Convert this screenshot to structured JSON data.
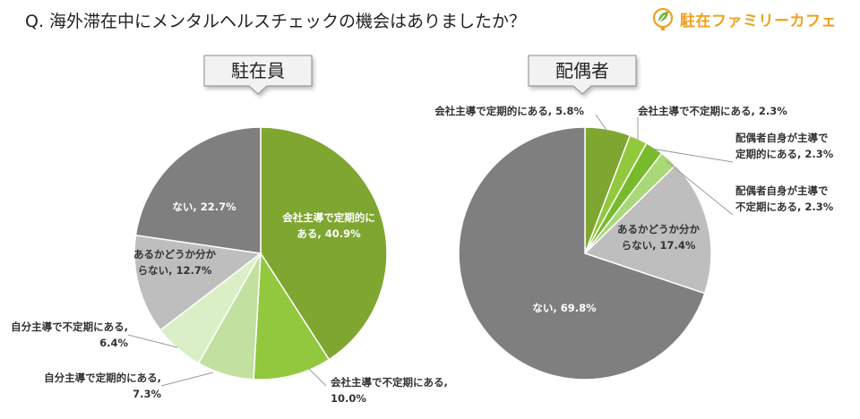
{
  "question": "Q. 海外滞在中にメンタルヘルスチェックの機会はありましたか？",
  "logo": {
    "text": "駐在ファミリーカフェ",
    "icon": "globe-leaf-logo-icon",
    "color": "#f0a020"
  },
  "chart_data": [
    {
      "type": "pie",
      "title": "駐在員",
      "slices": [
        {
          "name": "会社主導で定期的にある",
          "value": 40.9,
          "label": [
            "会社主導で定期的に",
            "ある, 40.9%"
          ],
          "color": "#7ea630"
        },
        {
          "name": "会社主導で不定期にある",
          "value": 10.0,
          "label": [
            "会社主導で不定期にある,",
            "10.0%"
          ],
          "color": "#92c83e"
        },
        {
          "name": "自分主導で定期的にある",
          "value": 7.3,
          "label": [
            "自分主導で定期的にある,",
            "7.3%"
          ],
          "color": "#c2e0a0"
        },
        {
          "name": "自分主導で不定期にある",
          "value": 6.4,
          "label": [
            "自分主導で不定期にある,",
            "6.4%"
          ],
          "color": "#daefc6"
        },
        {
          "name": "あるかどうか分からない",
          "value": 12.7,
          "label": [
            "あるかどうか分か",
            "らない, 12.7%"
          ],
          "color": "#bebebe"
        },
        {
          "name": "ない",
          "value": 22.7,
          "label": [
            "ない, 22.7%"
          ],
          "color": "#7f7f7f"
        }
      ]
    },
    {
      "type": "pie",
      "title": "配偶者",
      "slices": [
        {
          "name": "会社主導で定期的にある",
          "value": 5.8,
          "label": [
            "会社主導で定期的にある, 5.8%"
          ],
          "color": "#7ea630"
        },
        {
          "name": "会社主導で不定期にある",
          "value": 2.3,
          "label": [
            "会社主導で不定期にある, 2.3%"
          ],
          "color": "#92c83e"
        },
        {
          "name": "配偶者自身が主導で定期的にある",
          "value": 2.3,
          "label": [
            "配偶者自身が主導で",
            "定期的にある, 2.3%"
          ],
          "color": "#77bb2c"
        },
        {
          "name": "配偶者自身が主導で不定期にある",
          "value": 2.3,
          "label": [
            "配偶者自身が主導で",
            "不定期にある, 2.3%"
          ],
          "color": "#a9d878"
        },
        {
          "name": "あるかどうか分からない",
          "value": 17.4,
          "label": [
            "あるかどうか分か",
            "らない, 17.4%"
          ],
          "color": "#bebebe"
        },
        {
          "name": "ない",
          "value": 69.8,
          "label": [
            "ない, 69.8%"
          ],
          "color": "#7f7f7f"
        }
      ]
    }
  ]
}
